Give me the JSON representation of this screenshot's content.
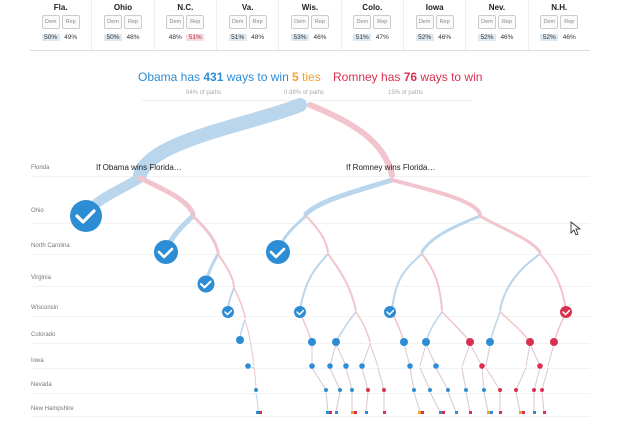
{
  "states": [
    {
      "name": "Fla.",
      "dem": "50%",
      "rep": "49%",
      "lead": "dem"
    },
    {
      "name": "Ohio",
      "dem": "50%",
      "rep": "48%",
      "lead": "dem"
    },
    {
      "name": "N.C.",
      "dem": "48%",
      "rep": "51%",
      "lead": "rep"
    },
    {
      "name": "Va.",
      "dem": "51%",
      "rep": "48%",
      "lead": "dem"
    },
    {
      "name": "Wis.",
      "dem": "53%",
      "rep": "46%",
      "lead": "dem"
    },
    {
      "name": "Colo.",
      "dem": "51%",
      "rep": "47%",
      "lead": "dem"
    },
    {
      "name": "Iowa",
      "dem": "52%",
      "rep": "46%",
      "lead": "dem"
    },
    {
      "name": "Nev.",
      "dem": "52%",
      "rep": "46%",
      "lead": "dem"
    },
    {
      "name": "N.H.",
      "dem": "52%",
      "rep": "46%",
      "lead": "dem"
    }
  ],
  "buttons": {
    "dem": "Dem",
    "rep": "Rep"
  },
  "summary": {
    "obama_pre": "Obama has ",
    "obama_count": "431",
    "obama_post": " ways to win",
    "obama_sub": "84% of paths",
    "ties_count": "5",
    "ties_post": " ties",
    "ties_sub": "0.98% of paths",
    "romney_pre": "Romney has ",
    "romney_count": "76",
    "romney_post": " ways to win",
    "romney_sub": "15% of paths"
  },
  "branches": {
    "left": "If Obama wins Florida…",
    "right": "If Romney wins Florida…"
  },
  "rows": [
    "Florida",
    "Ohio",
    "North Carolina",
    "Virginia",
    "Wisconsin",
    "Colorado",
    "Iowa",
    "Nevada",
    "New Hampshire"
  ],
  "colors": {
    "dem": "#2d8dd4",
    "rep": "#d9304f",
    "dem_light": "#b9d6ec",
    "rep_light": "#f2c4cd",
    "tie": "#f0a22f"
  }
}
